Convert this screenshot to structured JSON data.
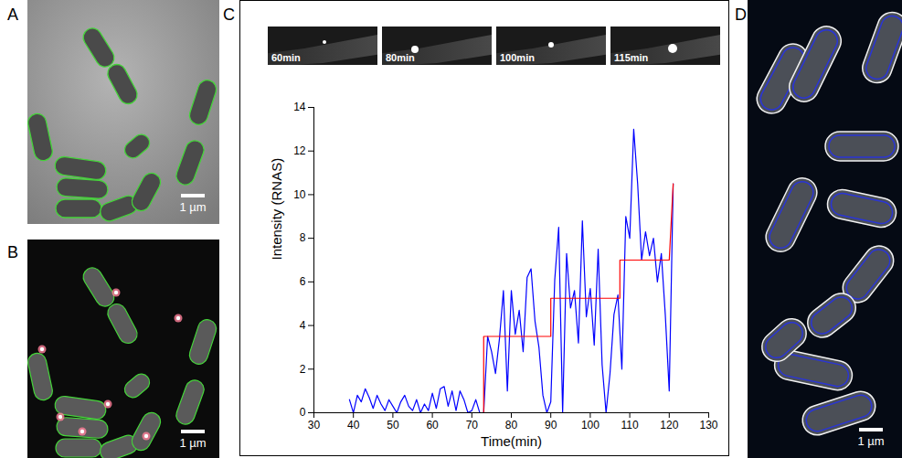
{
  "panels": {
    "A": {
      "label": "A",
      "scale_bar": "1 µm"
    },
    "B": {
      "label": "B",
      "scale_bar": "1 µm"
    },
    "C": {
      "label": "C",
      "frames": [
        "60min",
        "80min",
        "100min",
        "115min"
      ]
    },
    "D": {
      "label": "D",
      "scale_bar": "1 µm"
    }
  },
  "chart_data": {
    "type": "line",
    "x_label": "Time(min)",
    "y_label": "Intensity (RNAS)",
    "xlim": [
      30,
      130
    ],
    "xticks": [
      30,
      40,
      50,
      60,
      70,
      80,
      90,
      100,
      110,
      120,
      130
    ],
    "ylim": [
      0,
      14
    ],
    "yticks": [
      0,
      2,
      4,
      6,
      8,
      10,
      12,
      14
    ],
    "grid": false,
    "series": [
      {
        "color": "#0000ff",
        "line_style": "solid",
        "x": [
          39,
          40,
          41,
          42,
          43,
          44,
          45,
          46,
          47,
          48,
          49,
          50,
          51,
          52,
          53,
          54,
          55,
          56,
          57,
          58,
          59,
          60,
          61,
          62,
          63,
          64,
          65,
          66,
          67,
          68,
          69,
          70,
          71,
          72,
          73,
          74,
          75,
          76,
          77,
          78,
          79,
          80,
          81,
          82,
          83,
          84,
          85,
          86,
          87,
          88,
          89,
          90,
          91,
          92,
          93,
          94,
          95,
          96,
          97,
          98,
          99,
          100,
          101,
          102,
          103,
          104,
          105,
          106,
          107,
          108,
          109,
          110,
          111,
          112,
          113,
          114,
          115,
          116,
          117,
          118,
          119,
          120,
          121
        ],
        "values": [
          0.6,
          0,
          0.8,
          0.5,
          1.1,
          0.7,
          0.2,
          0.8,
          0.4,
          0.1,
          0.6,
          0.3,
          0,
          0.5,
          0.8,
          0.3,
          0.1,
          0.6,
          0,
          0.4,
          0.1,
          0.9,
          0.2,
          1.1,
          1.2,
          0.3,
          1,
          0.1,
          1,
          0.6,
          0,
          0.1,
          0.6,
          0,
          0,
          3.5,
          2.8,
          1.8,
          3.4,
          5.6,
          1,
          5.6,
          3.6,
          4.7,
          2.8,
          6.2,
          6.6,
          4.2,
          3,
          0.8,
          0,
          0.5,
          6.1,
          8.5,
          0,
          7.3,
          4.8,
          5.6,
          3.2,
          8.8,
          4.4,
          5.7,
          3.1,
          7.5,
          2.2,
          0,
          1.8,
          4.5,
          5.4,
          2,
          9,
          8,
          13,
          10.5,
          7,
          8.3,
          7.2,
          8,
          6,
          7.3,
          4.5,
          1,
          10.5
        ]
      },
      {
        "color": "#ff0000",
        "line_style": "solid",
        "x": [
          39,
          73,
          73,
          90,
          90,
          107.5,
          107.5,
          120,
          121
        ],
        "values": [
          0,
          0,
          3.5,
          3.5,
          5.25,
          5.25,
          7,
          7,
          10.5
        ]
      }
    ]
  }
}
